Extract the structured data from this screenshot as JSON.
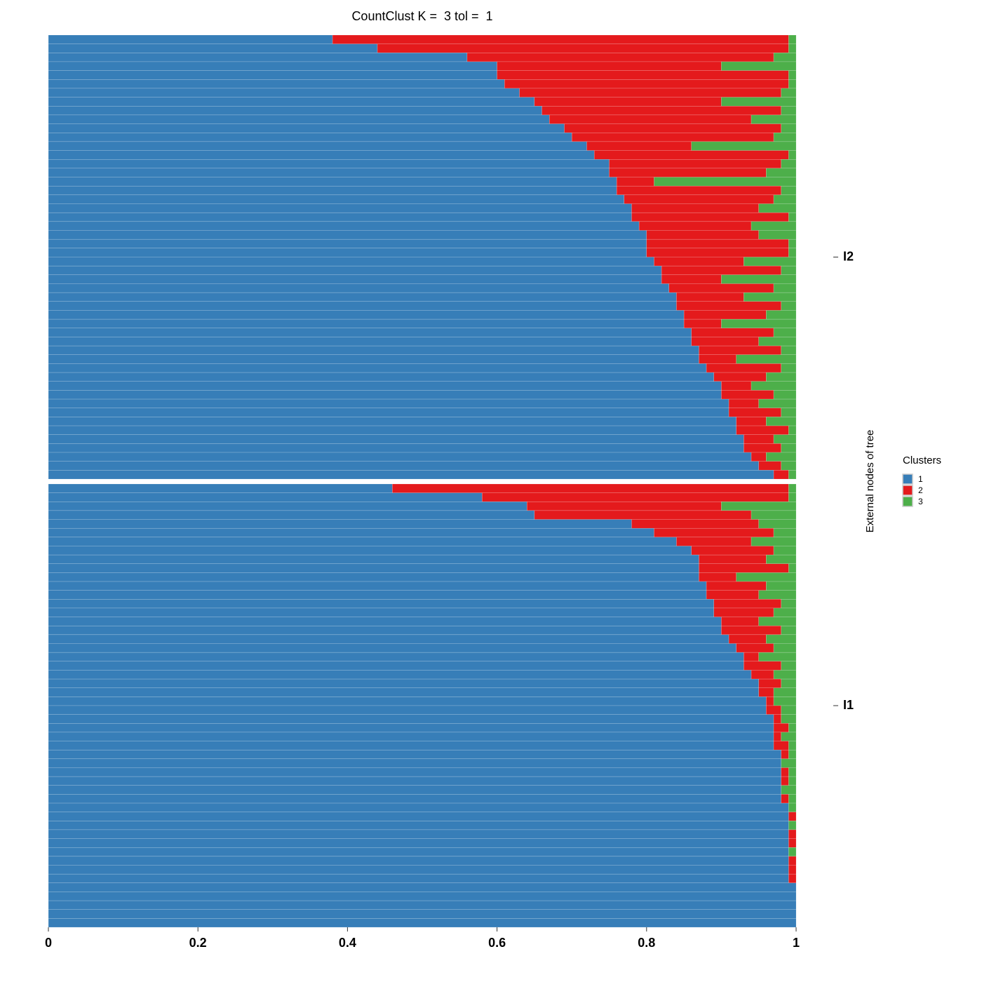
{
  "chart_data": {
    "type": "stacked-bar-horizontal",
    "title": "CountClust K =  3 tol =  1",
    "ylabel": "External nodes of tree",
    "legend_title": "Clusters",
    "series": [
      {
        "name": "1",
        "color": "#377eb8"
      },
      {
        "name": "2",
        "color": "#e41a1c"
      },
      {
        "name": "3",
        "color": "#4daf4a"
      }
    ],
    "xlim": [
      0,
      1
    ],
    "xticks": [
      0,
      0.2,
      0.4,
      0.6,
      0.8,
      1
    ],
    "panels": [
      {
        "label": "I2",
        "rows": [
          [
            0.38,
            0.61,
            0.01
          ],
          [
            0.44,
            0.55,
            0.01
          ],
          [
            0.56,
            0.41,
            0.03
          ],
          [
            0.6,
            0.3,
            0.1
          ],
          [
            0.6,
            0.39,
            0.01
          ],
          [
            0.61,
            0.38,
            0.01
          ],
          [
            0.63,
            0.35,
            0.02
          ],
          [
            0.65,
            0.25,
            0.1
          ],
          [
            0.66,
            0.32,
            0.02
          ],
          [
            0.67,
            0.27,
            0.06
          ],
          [
            0.69,
            0.29,
            0.02
          ],
          [
            0.7,
            0.27,
            0.03
          ],
          [
            0.72,
            0.14,
            0.14
          ],
          [
            0.73,
            0.26,
            0.01
          ],
          [
            0.75,
            0.23,
            0.02
          ],
          [
            0.75,
            0.21,
            0.04
          ],
          [
            0.76,
            0.05,
            0.19
          ],
          [
            0.76,
            0.22,
            0.02
          ],
          [
            0.77,
            0.2,
            0.03
          ],
          [
            0.78,
            0.17,
            0.05
          ],
          [
            0.78,
            0.21,
            0.01
          ],
          [
            0.79,
            0.15,
            0.06
          ],
          [
            0.8,
            0.15,
            0.05
          ],
          [
            0.8,
            0.19,
            0.01
          ],
          [
            0.8,
            0.19,
            0.01
          ],
          [
            0.81,
            0.12,
            0.07
          ],
          [
            0.82,
            0.16,
            0.02
          ],
          [
            0.82,
            0.08,
            0.1
          ],
          [
            0.83,
            0.14,
            0.03
          ],
          [
            0.84,
            0.09,
            0.07
          ],
          [
            0.84,
            0.14,
            0.02
          ],
          [
            0.85,
            0.11,
            0.04
          ],
          [
            0.85,
            0.05,
            0.1
          ],
          [
            0.86,
            0.11,
            0.03
          ],
          [
            0.86,
            0.09,
            0.05
          ],
          [
            0.87,
            0.11,
            0.02
          ],
          [
            0.87,
            0.05,
            0.08
          ],
          [
            0.88,
            0.1,
            0.02
          ],
          [
            0.89,
            0.07,
            0.04
          ],
          [
            0.9,
            0.04,
            0.06
          ],
          [
            0.9,
            0.07,
            0.03
          ],
          [
            0.91,
            0.04,
            0.05
          ],
          [
            0.91,
            0.07,
            0.02
          ],
          [
            0.92,
            0.04,
            0.04
          ],
          [
            0.92,
            0.07,
            0.01
          ],
          [
            0.93,
            0.04,
            0.03
          ],
          [
            0.93,
            0.05,
            0.02
          ],
          [
            0.94,
            0.02,
            0.04
          ],
          [
            0.95,
            0.03,
            0.02
          ],
          [
            0.97,
            0.02,
            0.01
          ]
        ]
      },
      {
        "label": "I1",
        "rows": [
          [
            0.46,
            0.53,
            0.01
          ],
          [
            0.58,
            0.41,
            0.01
          ],
          [
            0.64,
            0.26,
            0.1
          ],
          [
            0.65,
            0.29,
            0.06
          ],
          [
            0.78,
            0.17,
            0.05
          ],
          [
            0.81,
            0.16,
            0.03
          ],
          [
            0.84,
            0.1,
            0.06
          ],
          [
            0.86,
            0.11,
            0.03
          ],
          [
            0.87,
            0.09,
            0.04
          ],
          [
            0.87,
            0.12,
            0.01
          ],
          [
            0.87,
            0.05,
            0.08
          ],
          [
            0.88,
            0.08,
            0.04
          ],
          [
            0.88,
            0.07,
            0.05
          ],
          [
            0.89,
            0.09,
            0.02
          ],
          [
            0.89,
            0.08,
            0.03
          ],
          [
            0.9,
            0.05,
            0.05
          ],
          [
            0.9,
            0.08,
            0.02
          ],
          [
            0.91,
            0.05,
            0.04
          ],
          [
            0.92,
            0.05,
            0.03
          ],
          [
            0.93,
            0.02,
            0.05
          ],
          [
            0.93,
            0.05,
            0.02
          ],
          [
            0.94,
            0.03,
            0.03
          ],
          [
            0.95,
            0.03,
            0.02
          ],
          [
            0.95,
            0.02,
            0.03
          ],
          [
            0.96,
            0.01,
            0.03
          ],
          [
            0.96,
            0.02,
            0.02
          ],
          [
            0.97,
            0.01,
            0.02
          ],
          [
            0.97,
            0.02,
            0.01
          ],
          [
            0.97,
            0.01,
            0.02
          ],
          [
            0.97,
            0.02,
            0.01
          ],
          [
            0.98,
            0.01,
            0.01
          ],
          [
            0.98,
            0,
            0.02
          ],
          [
            0.98,
            0.01,
            0.01
          ],
          [
            0.98,
            0.01,
            0.01
          ],
          [
            0.98,
            0,
            0.02
          ],
          [
            0.98,
            0.01,
            0.01
          ],
          [
            0.99,
            0,
            0.01
          ],
          [
            0.99,
            0.01,
            0
          ],
          [
            0.99,
            0,
            0.01
          ],
          [
            0.99,
            0.01,
            0
          ],
          [
            0.99,
            0.01,
            0
          ],
          [
            0.99,
            0,
            0.01
          ],
          [
            0.99,
            0.01,
            0
          ],
          [
            0.99,
            0.01,
            0
          ],
          [
            0.99,
            0.01,
            0
          ],
          [
            1,
            0,
            0
          ],
          [
            1,
            0,
            0
          ],
          [
            1,
            0,
            0
          ],
          [
            1,
            0,
            0
          ],
          [
            1,
            0,
            0
          ]
        ]
      }
    ]
  }
}
